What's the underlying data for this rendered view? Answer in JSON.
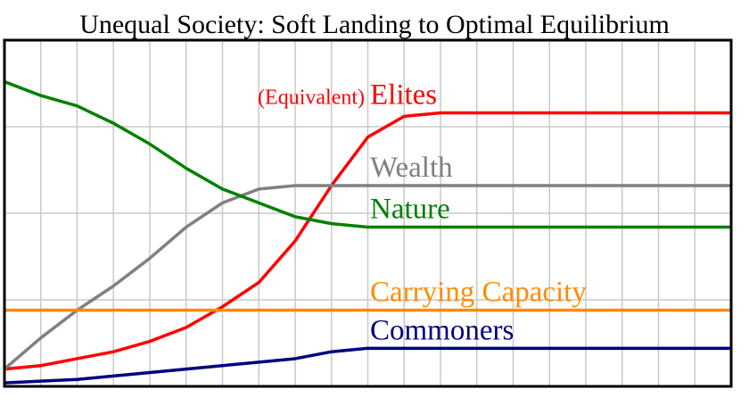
{
  "title": "Unequal Society: Soft Landing to Optimal Equilibrium",
  "chart_data": {
    "type": "line",
    "title": "Unequal Society: Soft Landing to Optimal Equilibrium",
    "xlabel": "",
    "ylabel": "",
    "grid": true,
    "x": [
      0,
      5,
      10,
      15,
      20,
      25,
      30,
      35,
      40,
      45,
      50,
      55,
      60,
      65,
      70,
      75,
      80,
      85,
      90,
      95,
      100
    ],
    "ylim": [
      0,
      100
    ],
    "series": [
      {
        "name": "Elites",
        "prefix": "(Equivalent)",
        "color": "#ff0000",
        "values": [
          5,
          6,
          8,
          10,
          13,
          17,
          23,
          30,
          42,
          58,
          72,
          78,
          79,
          79,
          79,
          79,
          79,
          79,
          79,
          79,
          79
        ]
      },
      {
        "name": "Wealth",
        "color": "#808080",
        "values": [
          5,
          14,
          22,
          29,
          37,
          46,
          53,
          57,
          58,
          58,
          58,
          58,
          58,
          58,
          58,
          58,
          58,
          58,
          58,
          58,
          58
        ]
      },
      {
        "name": "Nature",
        "color": "#008000",
        "values": [
          88,
          84,
          81,
          76,
          70,
          63,
          57,
          53,
          49,
          47,
          46,
          46,
          46,
          46,
          46,
          46,
          46,
          46,
          46,
          46,
          46
        ]
      },
      {
        "name": "Carrying Capacity",
        "color": "#ff8c00",
        "values": [
          22,
          22,
          22,
          22,
          22,
          22,
          22,
          22,
          22,
          22,
          22,
          22,
          22,
          22,
          22,
          22,
          22,
          22,
          22,
          22,
          22
        ]
      },
      {
        "name": "Commoners",
        "color": "#000080",
        "values": [
          1,
          1.5,
          2,
          3,
          4,
          5,
          6,
          7,
          8,
          10,
          11,
          11,
          11,
          11,
          11,
          11,
          11,
          11,
          11,
          11,
          11
        ]
      }
    ]
  }
}
